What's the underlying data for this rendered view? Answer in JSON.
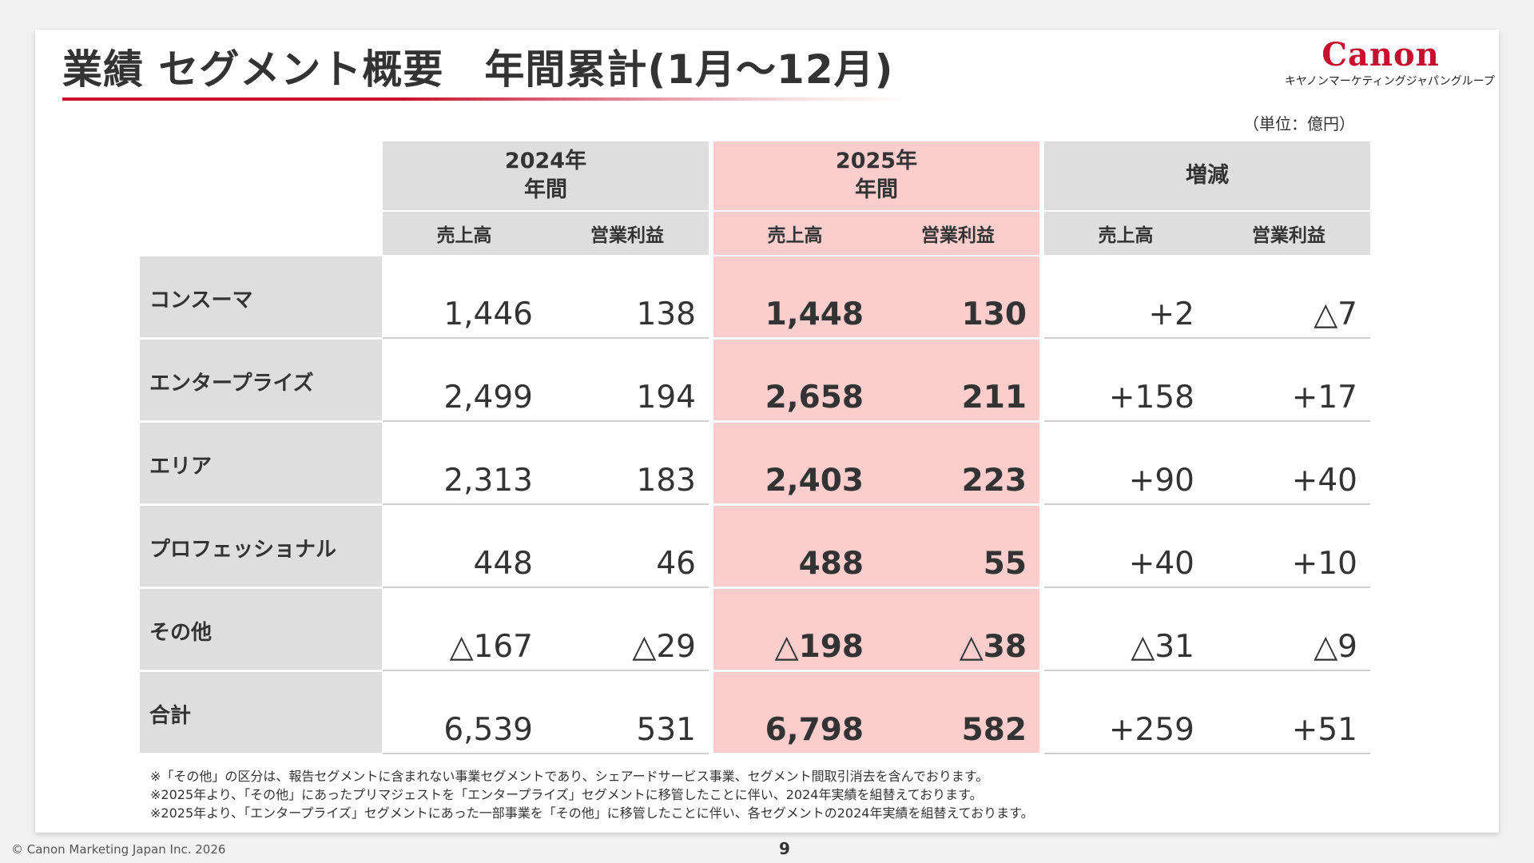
{
  "title": "業績 セグメント概要　年間累計(1月～12月)",
  "logo": {
    "word": "Canon",
    "sub": "キヤノンマーケティングジャパングループ"
  },
  "unit": "（単位：億円）",
  "headers": {
    "y2024": "2024年\n年間",
    "y2025": "2025年\n年間",
    "diff": "増減",
    "sales": "売上高",
    "op": "営業利益"
  },
  "rows": [
    {
      "label": "コンスーマ",
      "s24": "1,446",
      "o24": "138",
      "s25": "1,448",
      "o25": "130",
      "ds": "+2",
      "do": "△7"
    },
    {
      "label": "エンタープライズ",
      "s24": "2,499",
      "o24": "194",
      "s25": "2,658",
      "o25": "211",
      "ds": "+158",
      "do": "+17"
    },
    {
      "label": "エリア",
      "s24": "2,313",
      "o24": "183",
      "s25": "2,403",
      "o25": "223",
      "ds": "+90",
      "do": "+40"
    },
    {
      "label": "プロフェッショナル",
      "s24": "448",
      "o24": "46",
      "s25": "488",
      "o25": "55",
      "ds": "+40",
      "do": "+10"
    },
    {
      "label": "その他",
      "s24": "△167",
      "o24": "△29",
      "s25": "△198",
      "o25": "△38",
      "ds": "△31",
      "do": "△9"
    },
    {
      "label": "合計",
      "s24": "6,539",
      "o24": "531",
      "s25": "6,798",
      "o25": "582",
      "ds": "+259",
      "do": "+51"
    }
  ],
  "notes": [
    "※「その他」の区分は、報告セグメントに含まれない事業セグメントであり、シェアードサービス事業、セグメント間取引消去を含んでおります。",
    "※2025年より、「その他」にあったプリマジェストを「エンタープライズ」セグメントに移管したことに伴い、2024年実績を組替えております。",
    "※2025年より、「エンタープライズ」セグメントにあった一部事業を「その他」に移管したことに伴い、各セグメントの2024年実績を組替えております。"
  ],
  "footer": {
    "copyright": "© Canon Marketing Japan Inc. 2026",
    "page": "9"
  }
}
